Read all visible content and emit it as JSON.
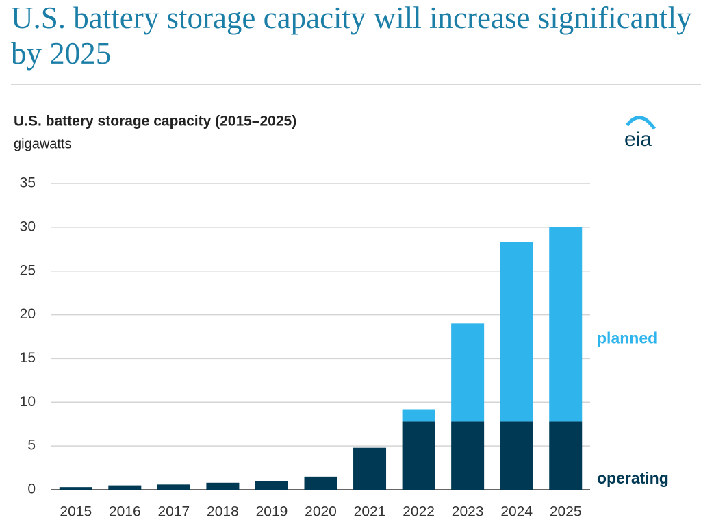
{
  "chart_data": {
    "type": "stacked_bar",
    "headline": "U.S. battery storage capacity will increase significantly by 2025",
    "title": "U.S. battery storage capacity (2015–2025)",
    "subtitle": "gigawatts",
    "logo": "eia",
    "categories": [
      "2015",
      "2016",
      "2017",
      "2018",
      "2019",
      "2020",
      "2021",
      "2022",
      "2023",
      "2024",
      "2025"
    ],
    "series": [
      {
        "name": "operating",
        "color": "#003953",
        "values": [
          0.3,
          0.5,
          0.6,
          0.8,
          1.0,
          1.5,
          4.8,
          7.8,
          7.8,
          7.8,
          7.8
        ]
      },
      {
        "name": "planned",
        "color": "#2fb4ec",
        "values": [
          0,
          0,
          0,
          0,
          0,
          0,
          0,
          1.4,
          11.2,
          20.5,
          22.2
        ]
      }
    ],
    "ylim": [
      0,
      35
    ],
    "yticks": [
      0,
      5,
      10,
      15,
      20,
      25,
      30,
      35
    ],
    "grid": true
  }
}
